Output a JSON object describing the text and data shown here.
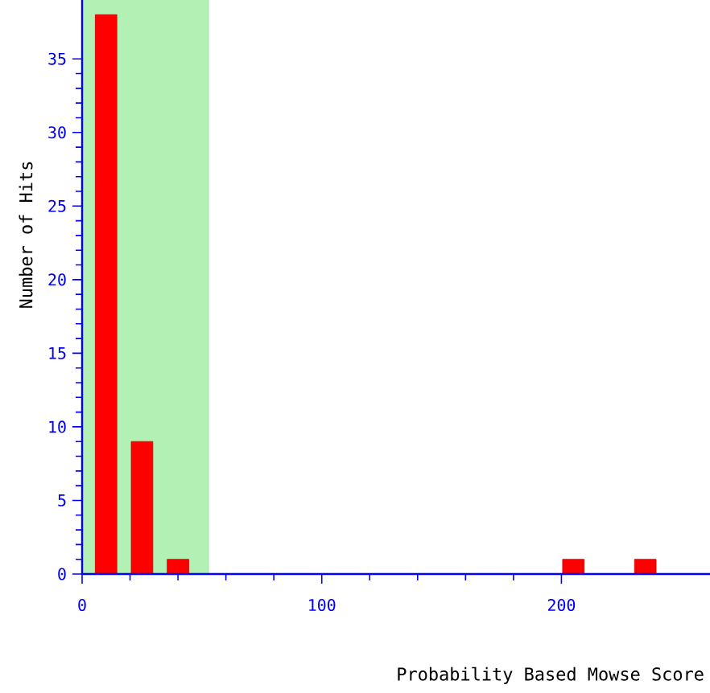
{
  "chart_data": {
    "type": "bar",
    "xlabel": "Probability Based Mowse Score",
    "ylabel": "Number of Hits",
    "x": [
      10,
      25,
      40,
      205,
      235
    ],
    "values": [
      38,
      9,
      1,
      1,
      1
    ],
    "color": "#ff0000",
    "xlim": [
      0,
      262
    ],
    "ylim": [
      0,
      39
    ],
    "xticks": [
      0,
      100,
      200
    ],
    "yticks": [
      0,
      5,
      10,
      15,
      20,
      25,
      30,
      35
    ],
    "bands": [
      {
        "axis": "x",
        "from": 0,
        "to": 53,
        "color": "#b3f0b3"
      }
    ]
  }
}
